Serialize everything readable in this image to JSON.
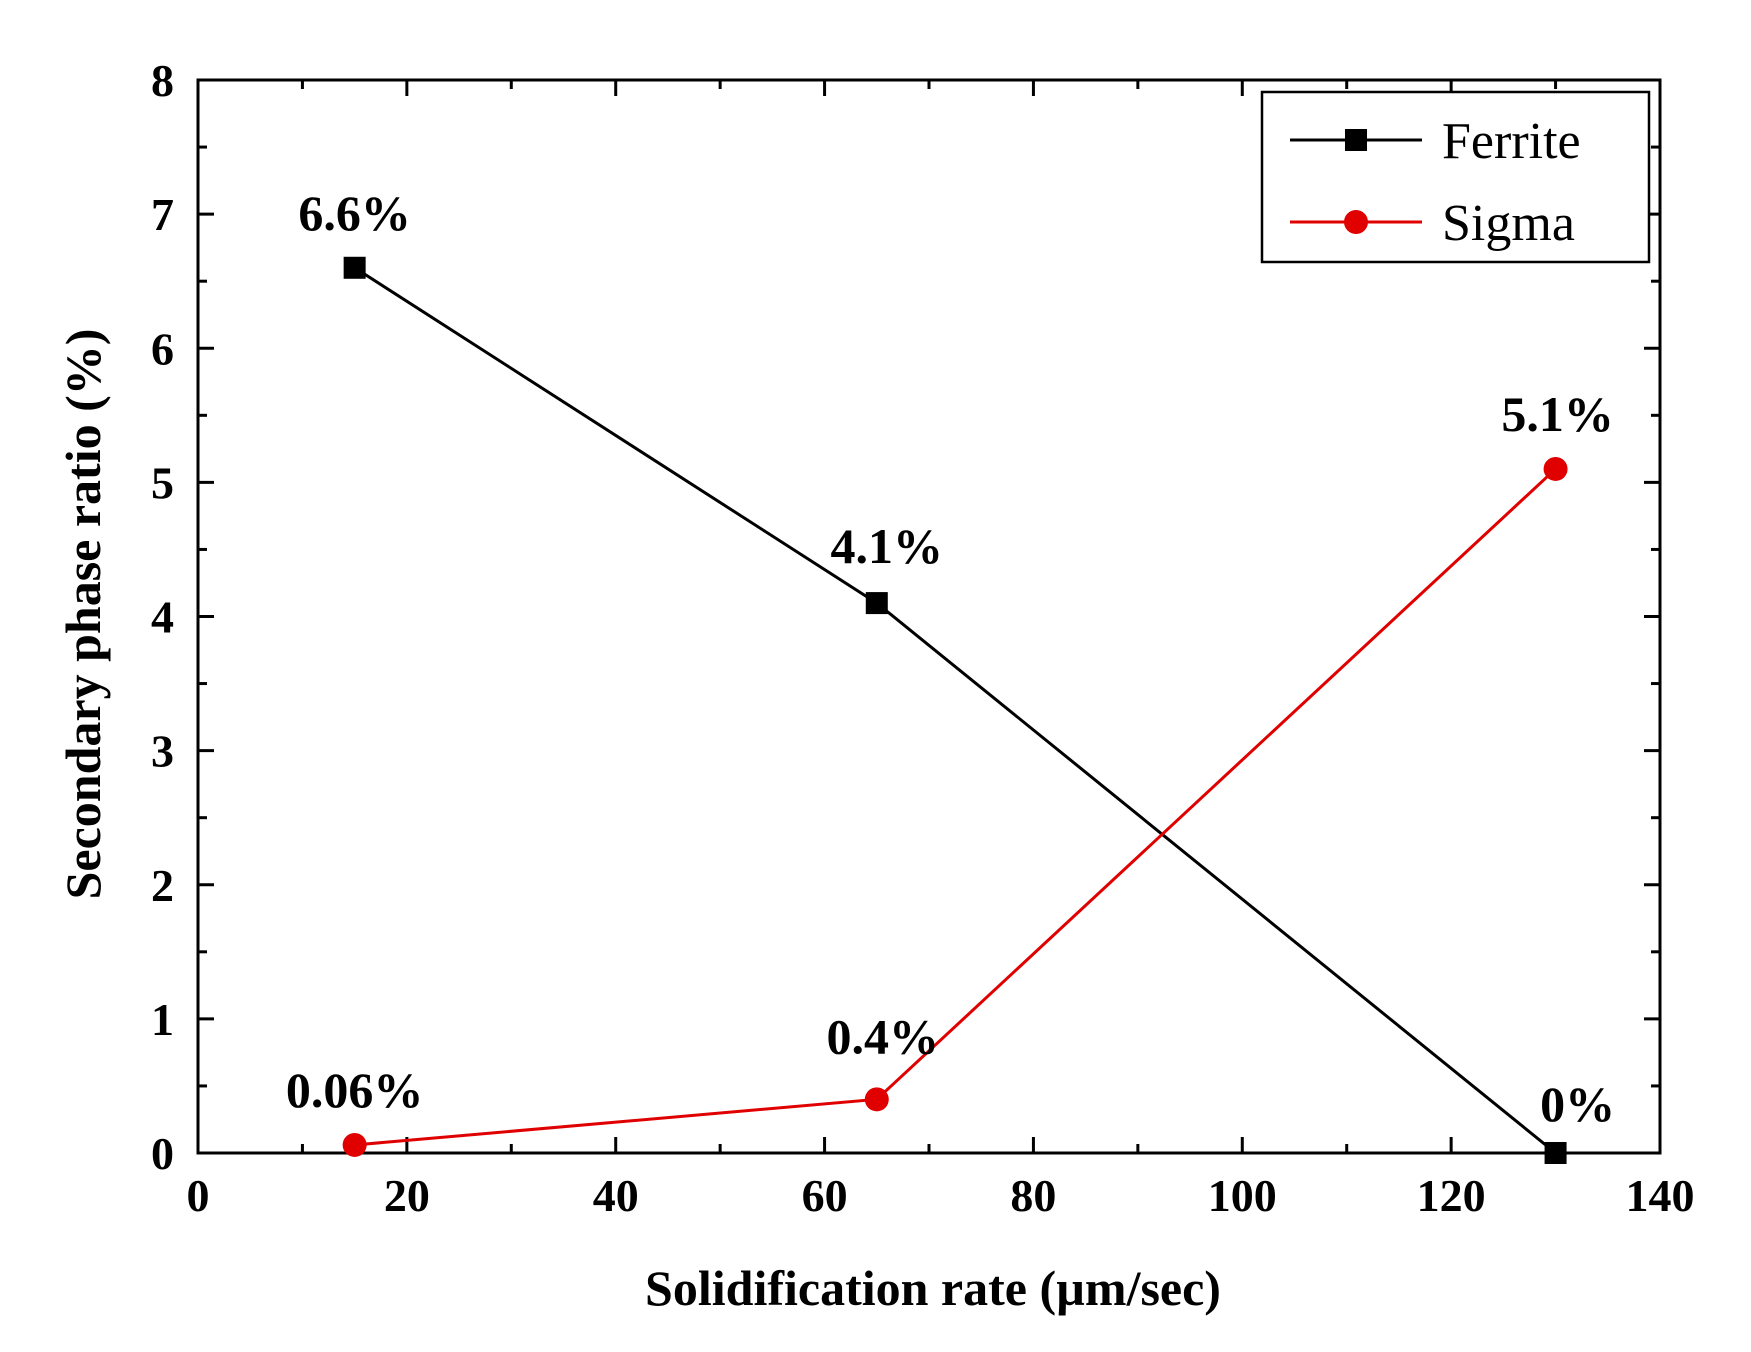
{
  "chart_data": {
    "type": "line",
    "title": "",
    "xlabel": "Solidification rate (µm/sec)",
    "ylabel": "Secondary phase ratio (%)",
    "xlim": [
      0,
      140
    ],
    "ylim": [
      0,
      8
    ],
    "xticks": [
      0,
      20,
      40,
      60,
      80,
      100,
      120,
      140
    ],
    "yticks": [
      0,
      1,
      2,
      3,
      4,
      5,
      6,
      7,
      8
    ],
    "xtick_labels": [
      "0",
      "20",
      "40",
      "60",
      "80",
      "100",
      "120",
      "140"
    ],
    "ytick_labels": [
      "0",
      "1",
      "2",
      "3",
      "4",
      "5",
      "6",
      "7",
      "8"
    ],
    "grid": false,
    "legend_position": "top-right",
    "series": [
      {
        "name": "Ferrite",
        "color": "#000000",
        "marker": "square",
        "x": [
          15,
          65,
          130
        ],
        "y": [
          6.6,
          4.1,
          0
        ],
        "labels": [
          "6.6%",
          "4.1%",
          "0%"
        ]
      },
      {
        "name": "Sigma",
        "color": "#e00000",
        "marker": "circle",
        "x": [
          15,
          65,
          130
        ],
        "y": [
          0.06,
          0.4,
          5.1
        ],
        "labels": [
          "0.06%",
          "0.4%",
          "5.1%"
        ]
      }
    ]
  }
}
